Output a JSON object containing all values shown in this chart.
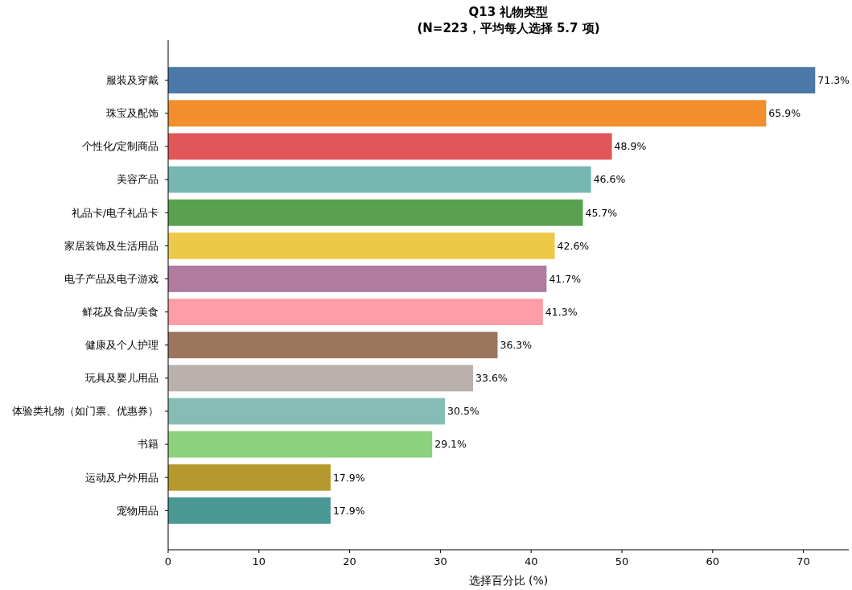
{
  "chart_data": {
    "type": "bar",
    "orientation": "horizontal",
    "title": "Q13 礼物类型\n(N=223，平均每人选择 5.7 项)",
    "xlabel": "选择百分比 (%)",
    "categories": [
      "服装及穿戴",
      "珠宝及配饰",
      "个性化/定制商品",
      "美容产品",
      "礼品卡/电子礼品卡",
      "家居装饰及生活用品",
      "电子产品及电子游戏",
      "鲜花及食品/美食",
      "健康及个人护理",
      "玩具及婴儿用品",
      "体验类礼物（如门票、优惠券）",
      "书籍",
      "运动及户外用品",
      "宠物用品"
    ],
    "values": [
      71.3,
      65.9,
      48.9,
      46.6,
      45.7,
      42.6,
      41.7,
      41.3,
      36.3,
      33.6,
      30.5,
      29.1,
      17.9,
      17.9
    ],
    "colors": [
      "#4c78a8",
      "#f28e2b",
      "#e15759",
      "#76b7b2",
      "#59a14f",
      "#edc948",
      "#b07aa1",
      "#ff9da7",
      "#9c755f",
      "#bab0ac",
      "#86bcb6",
      "#8cd17d",
      "#b6992d",
      "#499894"
    ],
    "value_labels": [
      "71.3%",
      "65.9%",
      "48.9%",
      "46.6%",
      "45.7%",
      "42.6%",
      "41.7%",
      "41.3%",
      "36.3%",
      "33.6%",
      "30.5%",
      "29.1%",
      "17.9%",
      "17.9%"
    ],
    "xlim": [
      0,
      75
    ],
    "xticks": [
      0,
      10,
      20,
      30,
      40,
      50,
      60,
      70
    ],
    "grid": false
  }
}
